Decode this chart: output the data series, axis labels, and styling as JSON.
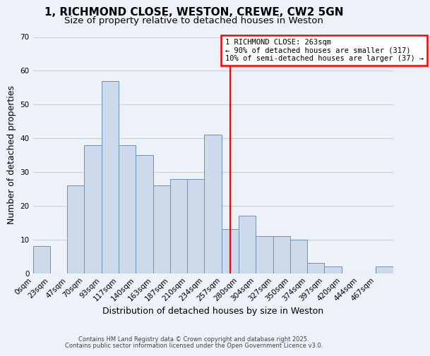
{
  "title": "1, RICHMOND CLOSE, WESTON, CREWE, CW2 5GN",
  "subtitle": "Size of property relative to detached houses in Weston",
  "xlabel": "Distribution of detached houses by size in Weston",
  "ylabel": "Number of detached properties",
  "bar_heights": [
    8,
    0,
    26,
    38,
    57,
    38,
    35,
    26,
    28,
    28,
    41,
    13,
    17,
    11,
    11,
    10,
    3,
    2,
    0,
    0,
    2
  ],
  "bin_labels": [
    "0sqm",
    "23sqm",
    "47sqm",
    "70sqm",
    "93sqm",
    "117sqm",
    "140sqm",
    "163sqm",
    "187sqm",
    "210sqm",
    "234sqm",
    "257sqm",
    "280sqm",
    "304sqm",
    "327sqm",
    "350sqm",
    "374sqm",
    "397sqm",
    "420sqm",
    "444sqm",
    "467sqm"
  ],
  "bar_color": "#ccdaeb",
  "bar_edge_color": "#7090b8",
  "grid_color": "#c8d0da",
  "bg_color": "#edf2f8",
  "vline_x": 11.5,
  "vline_color": "red",
  "annotation_text": "1 RICHMOND CLOSE: 263sqm\n← 90% of detached houses are smaller (317)\n10% of semi-detached houses are larger (37) →",
  "annotation_box_color": "white",
  "annotation_box_edge": "red",
  "ylim": [
    0,
    70
  ],
  "yticks": [
    0,
    10,
    20,
    30,
    40,
    50,
    60,
    70
  ],
  "footnote1": "Contains HM Land Registry data © Crown copyright and database right 2025.",
  "footnote2": "Contains public sector information licensed under the Open Government Licence v3.0.",
  "title_fontsize": 11,
  "subtitle_fontsize": 9.5,
  "axis_label_fontsize": 9,
  "tick_fontsize": 7.5,
  "annotation_fontsize": 7.5
}
